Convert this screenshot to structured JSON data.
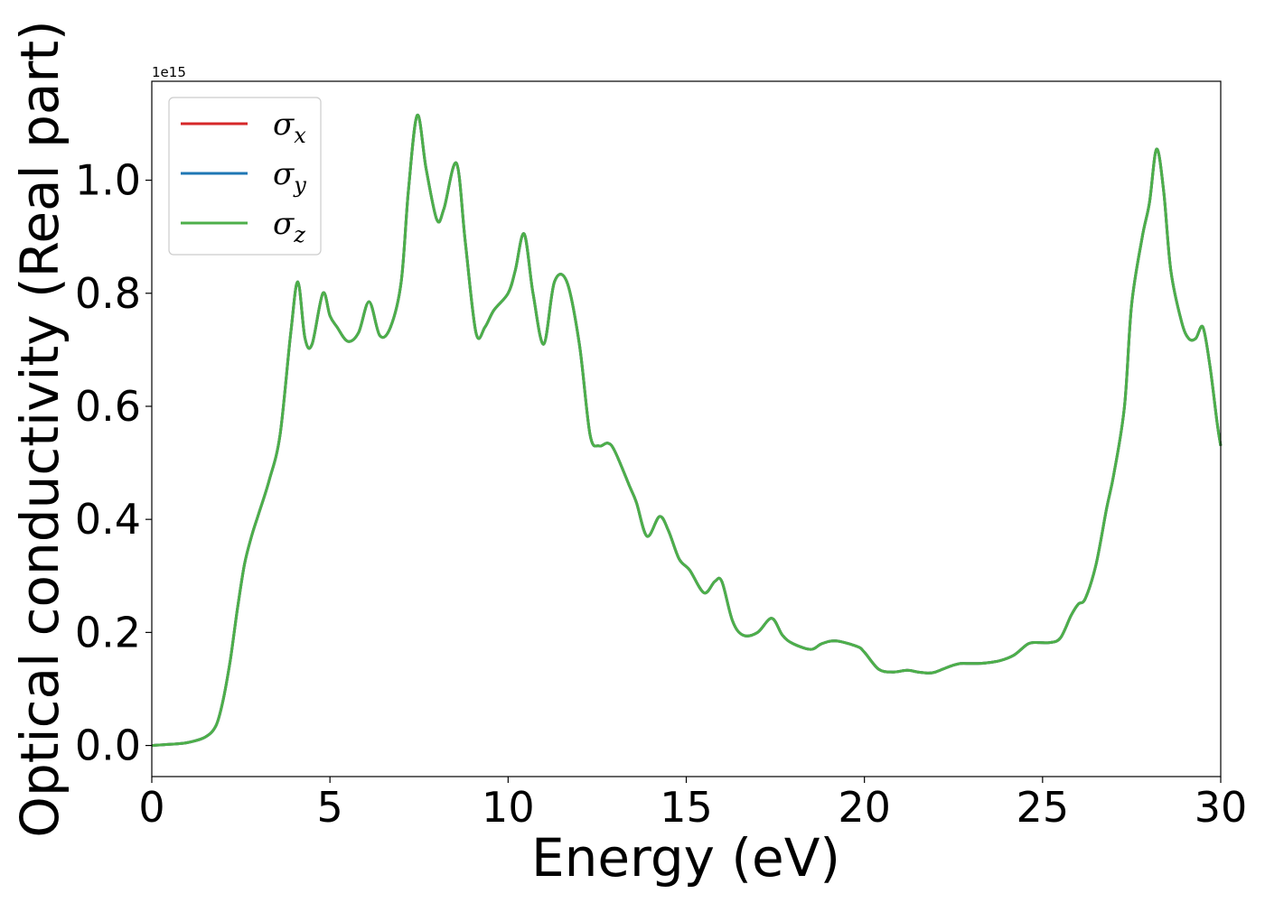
{
  "chart_data": {
    "type": "line",
    "title": "",
    "xlabel": "Energy (eV)",
    "ylabel": "Optical conductivity (Real part)",
    "y_offset_label": "1e15",
    "xlim": [
      0,
      30
    ],
    "ylim": [
      -0.055,
      1.175
    ],
    "xticks": [
      0,
      5,
      10,
      15,
      20,
      25,
      30
    ],
    "xtick_labels": [
      "0",
      "5",
      "10",
      "15",
      "20",
      "25",
      "30"
    ],
    "yticks": [
      0.0,
      0.2,
      0.4,
      0.6,
      0.8,
      1.0
    ],
    "ytick_labels": [
      "0.0",
      "0.2",
      "0.4",
      "0.6",
      "0.8",
      "1.0"
    ],
    "grid": false,
    "legend_position": "top-left",
    "x": [
      0,
      0.5,
      1,
      1.5,
      1.8,
      2.0,
      2.2,
      2.4,
      2.6,
      2.8,
      3.0,
      3.3,
      3.6,
      3.9,
      4.1,
      4.3,
      4.5,
      4.8,
      5.0,
      5.2,
      5.5,
      5.8,
      6.1,
      6.4,
      6.7,
      7.0,
      7.2,
      7.45,
      7.7,
      8.0,
      8.2,
      8.55,
      8.8,
      9.1,
      9.35,
      9.6,
      10.0,
      10.2,
      10.45,
      10.7,
      11.0,
      11.3,
      11.65,
      12.0,
      12.3,
      12.55,
      12.8,
      13.0,
      13.4,
      13.6,
      13.9,
      14.25,
      14.5,
      14.8,
      15.1,
      15.5,
      15.8,
      16.0,
      16.3,
      16.6,
      17.0,
      17.4,
      17.7,
      18.0,
      18.5,
      18.8,
      19.2,
      19.8,
      20.0,
      20.4,
      20.8,
      21.2,
      21.5,
      21.8,
      22.0,
      22.4,
      22.7,
      23.0,
      23.4,
      23.8,
      24.2,
      24.6,
      24.9,
      25.2,
      25.5,
      25.8,
      26.0,
      26.2,
      26.5,
      26.8,
      27.0,
      27.3,
      27.5,
      27.8,
      28.0,
      28.2,
      28.4,
      28.6,
      28.9,
      29.1,
      29.3,
      29.5,
      29.7,
      29.9,
      30.0
    ],
    "series": [
      {
        "name": "σx",
        "color": "#d62728",
        "values": [
          0.0,
          0.002,
          0.005,
          0.015,
          0.035,
          0.08,
          0.15,
          0.24,
          0.32,
          0.37,
          0.41,
          0.47,
          0.55,
          0.73,
          0.82,
          0.72,
          0.71,
          0.8,
          0.76,
          0.74,
          0.715,
          0.73,
          0.785,
          0.725,
          0.74,
          0.82,
          0.98,
          1.115,
          1.02,
          0.93,
          0.95,
          1.03,
          0.89,
          0.73,
          0.74,
          0.77,
          0.8,
          0.84,
          0.905,
          0.8,
          0.71,
          0.82,
          0.82,
          0.71,
          0.55,
          0.53,
          0.535,
          0.52,
          0.46,
          0.43,
          0.37,
          0.405,
          0.38,
          0.33,
          0.31,
          0.27,
          0.29,
          0.29,
          0.22,
          0.195,
          0.2,
          0.225,
          0.195,
          0.18,
          0.17,
          0.18,
          0.185,
          0.175,
          0.165,
          0.135,
          0.13,
          0.133,
          0.13,
          0.128,
          0.13,
          0.14,
          0.145,
          0.145,
          0.146,
          0.15,
          0.16,
          0.18,
          0.182,
          0.182,
          0.19,
          0.23,
          0.25,
          0.26,
          0.32,
          0.42,
          0.48,
          0.6,
          0.78,
          0.9,
          0.96,
          1.055,
          0.98,
          0.84,
          0.75,
          0.72,
          0.72,
          0.74,
          0.67,
          0.57,
          0.53
        ]
      },
      {
        "name": "σy",
        "color": "#1f77b4",
        "values": [
          0.0,
          0.002,
          0.005,
          0.015,
          0.035,
          0.08,
          0.15,
          0.24,
          0.32,
          0.37,
          0.41,
          0.47,
          0.55,
          0.73,
          0.82,
          0.72,
          0.71,
          0.8,
          0.76,
          0.74,
          0.715,
          0.73,
          0.785,
          0.725,
          0.74,
          0.82,
          0.98,
          1.115,
          1.02,
          0.93,
          0.95,
          1.03,
          0.89,
          0.73,
          0.74,
          0.77,
          0.8,
          0.84,
          0.905,
          0.8,
          0.71,
          0.82,
          0.82,
          0.71,
          0.55,
          0.53,
          0.535,
          0.52,
          0.46,
          0.43,
          0.37,
          0.405,
          0.38,
          0.33,
          0.31,
          0.27,
          0.29,
          0.29,
          0.22,
          0.195,
          0.2,
          0.225,
          0.195,
          0.18,
          0.17,
          0.18,
          0.185,
          0.175,
          0.165,
          0.135,
          0.13,
          0.133,
          0.13,
          0.128,
          0.13,
          0.14,
          0.145,
          0.145,
          0.146,
          0.15,
          0.16,
          0.18,
          0.182,
          0.182,
          0.19,
          0.23,
          0.25,
          0.26,
          0.32,
          0.42,
          0.48,
          0.6,
          0.78,
          0.9,
          0.96,
          1.055,
          0.98,
          0.84,
          0.75,
          0.72,
          0.72,
          0.74,
          0.67,
          0.57,
          0.53
        ]
      },
      {
        "name": "σz",
        "color": "#4daf4a",
        "values": [
          0.0,
          0.002,
          0.005,
          0.015,
          0.035,
          0.08,
          0.15,
          0.24,
          0.32,
          0.37,
          0.41,
          0.47,
          0.55,
          0.73,
          0.82,
          0.72,
          0.71,
          0.8,
          0.76,
          0.74,
          0.715,
          0.73,
          0.785,
          0.725,
          0.74,
          0.82,
          0.98,
          1.115,
          1.02,
          0.93,
          0.95,
          1.03,
          0.89,
          0.73,
          0.74,
          0.77,
          0.8,
          0.84,
          0.905,
          0.8,
          0.71,
          0.82,
          0.82,
          0.71,
          0.55,
          0.53,
          0.535,
          0.52,
          0.46,
          0.43,
          0.37,
          0.405,
          0.38,
          0.33,
          0.31,
          0.27,
          0.29,
          0.29,
          0.22,
          0.195,
          0.2,
          0.225,
          0.195,
          0.18,
          0.17,
          0.18,
          0.185,
          0.175,
          0.165,
          0.135,
          0.13,
          0.133,
          0.13,
          0.128,
          0.13,
          0.14,
          0.145,
          0.145,
          0.146,
          0.15,
          0.16,
          0.18,
          0.182,
          0.182,
          0.19,
          0.23,
          0.25,
          0.26,
          0.32,
          0.42,
          0.48,
          0.6,
          0.78,
          0.9,
          0.96,
          1.055,
          0.98,
          0.84,
          0.75,
          0.72,
          0.72,
          0.74,
          0.67,
          0.57,
          0.53
        ]
      }
    ],
    "legend": [
      {
        "symbol": "σ",
        "subscript": "x",
        "color": "#d62728"
      },
      {
        "symbol": "σ",
        "subscript": "y",
        "color": "#1f77b4"
      },
      {
        "symbol": "σ",
        "subscript": "z",
        "color": "#4daf4a"
      }
    ]
  }
}
